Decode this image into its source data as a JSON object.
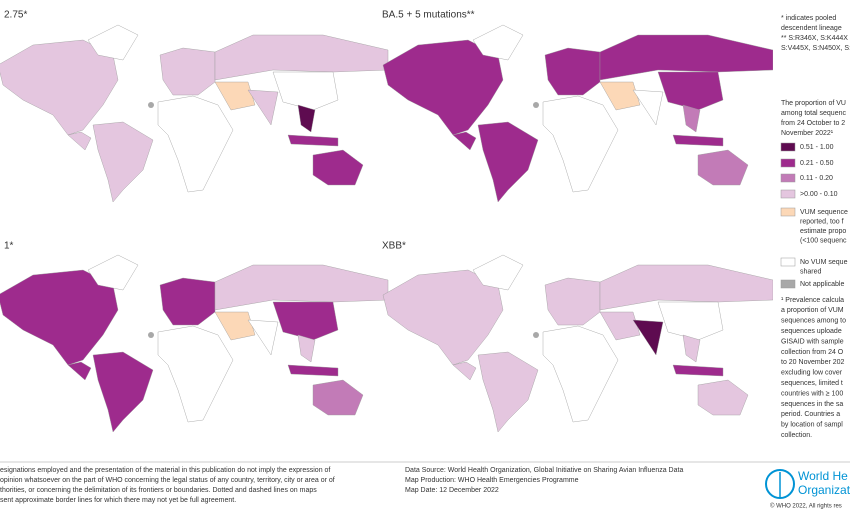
{
  "panels": [
    {
      "title": "2.75*"
    },
    {
      "title": "BA.5 + 5 mutations**"
    },
    {
      "title": "1*"
    },
    {
      "title": "XBB*"
    }
  ],
  "sidebar": {
    "notes": [
      "* indicates pooled",
      "descendent lineage",
      "** S:R346X, S:K444X",
      "S:V445X, S:N450X, S:"
    ],
    "legend_title": [
      "The proportion of VU",
      "among total sequenc",
      "from 24 October to 2",
      "November 2022¹"
    ],
    "legend": [
      {
        "label": [
          "0.51 - 1.00"
        ],
        "color": "#5e0b50"
      },
      {
        "label": [
          "0.21 - 0.50"
        ],
        "color": "#9e2b8d"
      },
      {
        "label": [
          "0.11 - 0.20"
        ],
        "color": "#c27bb7"
      },
      {
        "label": [
          ">0.00 - 0.10"
        ],
        "color": "#e4c6df"
      },
      {
        "label": [
          "VUM sequence",
          "reported, too f",
          "estimate propo",
          "(<100 sequenc"
        ],
        "color": "#fcd8b7"
      },
      {
        "label": [
          "No VUM seque",
          "shared"
        ],
        "color": "#ffffff"
      },
      {
        "label": [
          "Not applicable"
        ],
        "color": "#a8a8a8"
      }
    ],
    "footnote": [
      "¹ Prevalence calcula",
      "a proportion of VUM",
      "sequences among to",
      "sequences uploade",
      "GISAID with sample",
      "collection from 24 O",
      "to 20 November 202",
      "excluding low cover",
      "sequences, limited t",
      "countries with ≥ 100",
      "sequences in the sa",
      "period. Countries a",
      "by location of sampl",
      "collection."
    ]
  },
  "footer": {
    "disclaimer": [
      "esignations employed and the presentation of the material in this publication do not imply the expression of",
      "opinion whatsoever on the part of WHO concerning the legal status of any country, territory, city or area or of",
      "thorities, or concerning the delimitation of its frontiers or boundaries. Dotted and dashed lines on maps",
      "sent approximate border lines for which there may not yet be full agreement."
    ],
    "source": [
      "Data Source: World Health Organization, Global Initiative on Sharing Avian Influenza Data",
      "Map Production: WHO Health Emergencies Programme",
      "Map Date: 12 December 2022"
    ],
    "logo": [
      "World He",
      "Organizat"
    ],
    "copyright": "© WHO 2022, All rights res"
  }
}
